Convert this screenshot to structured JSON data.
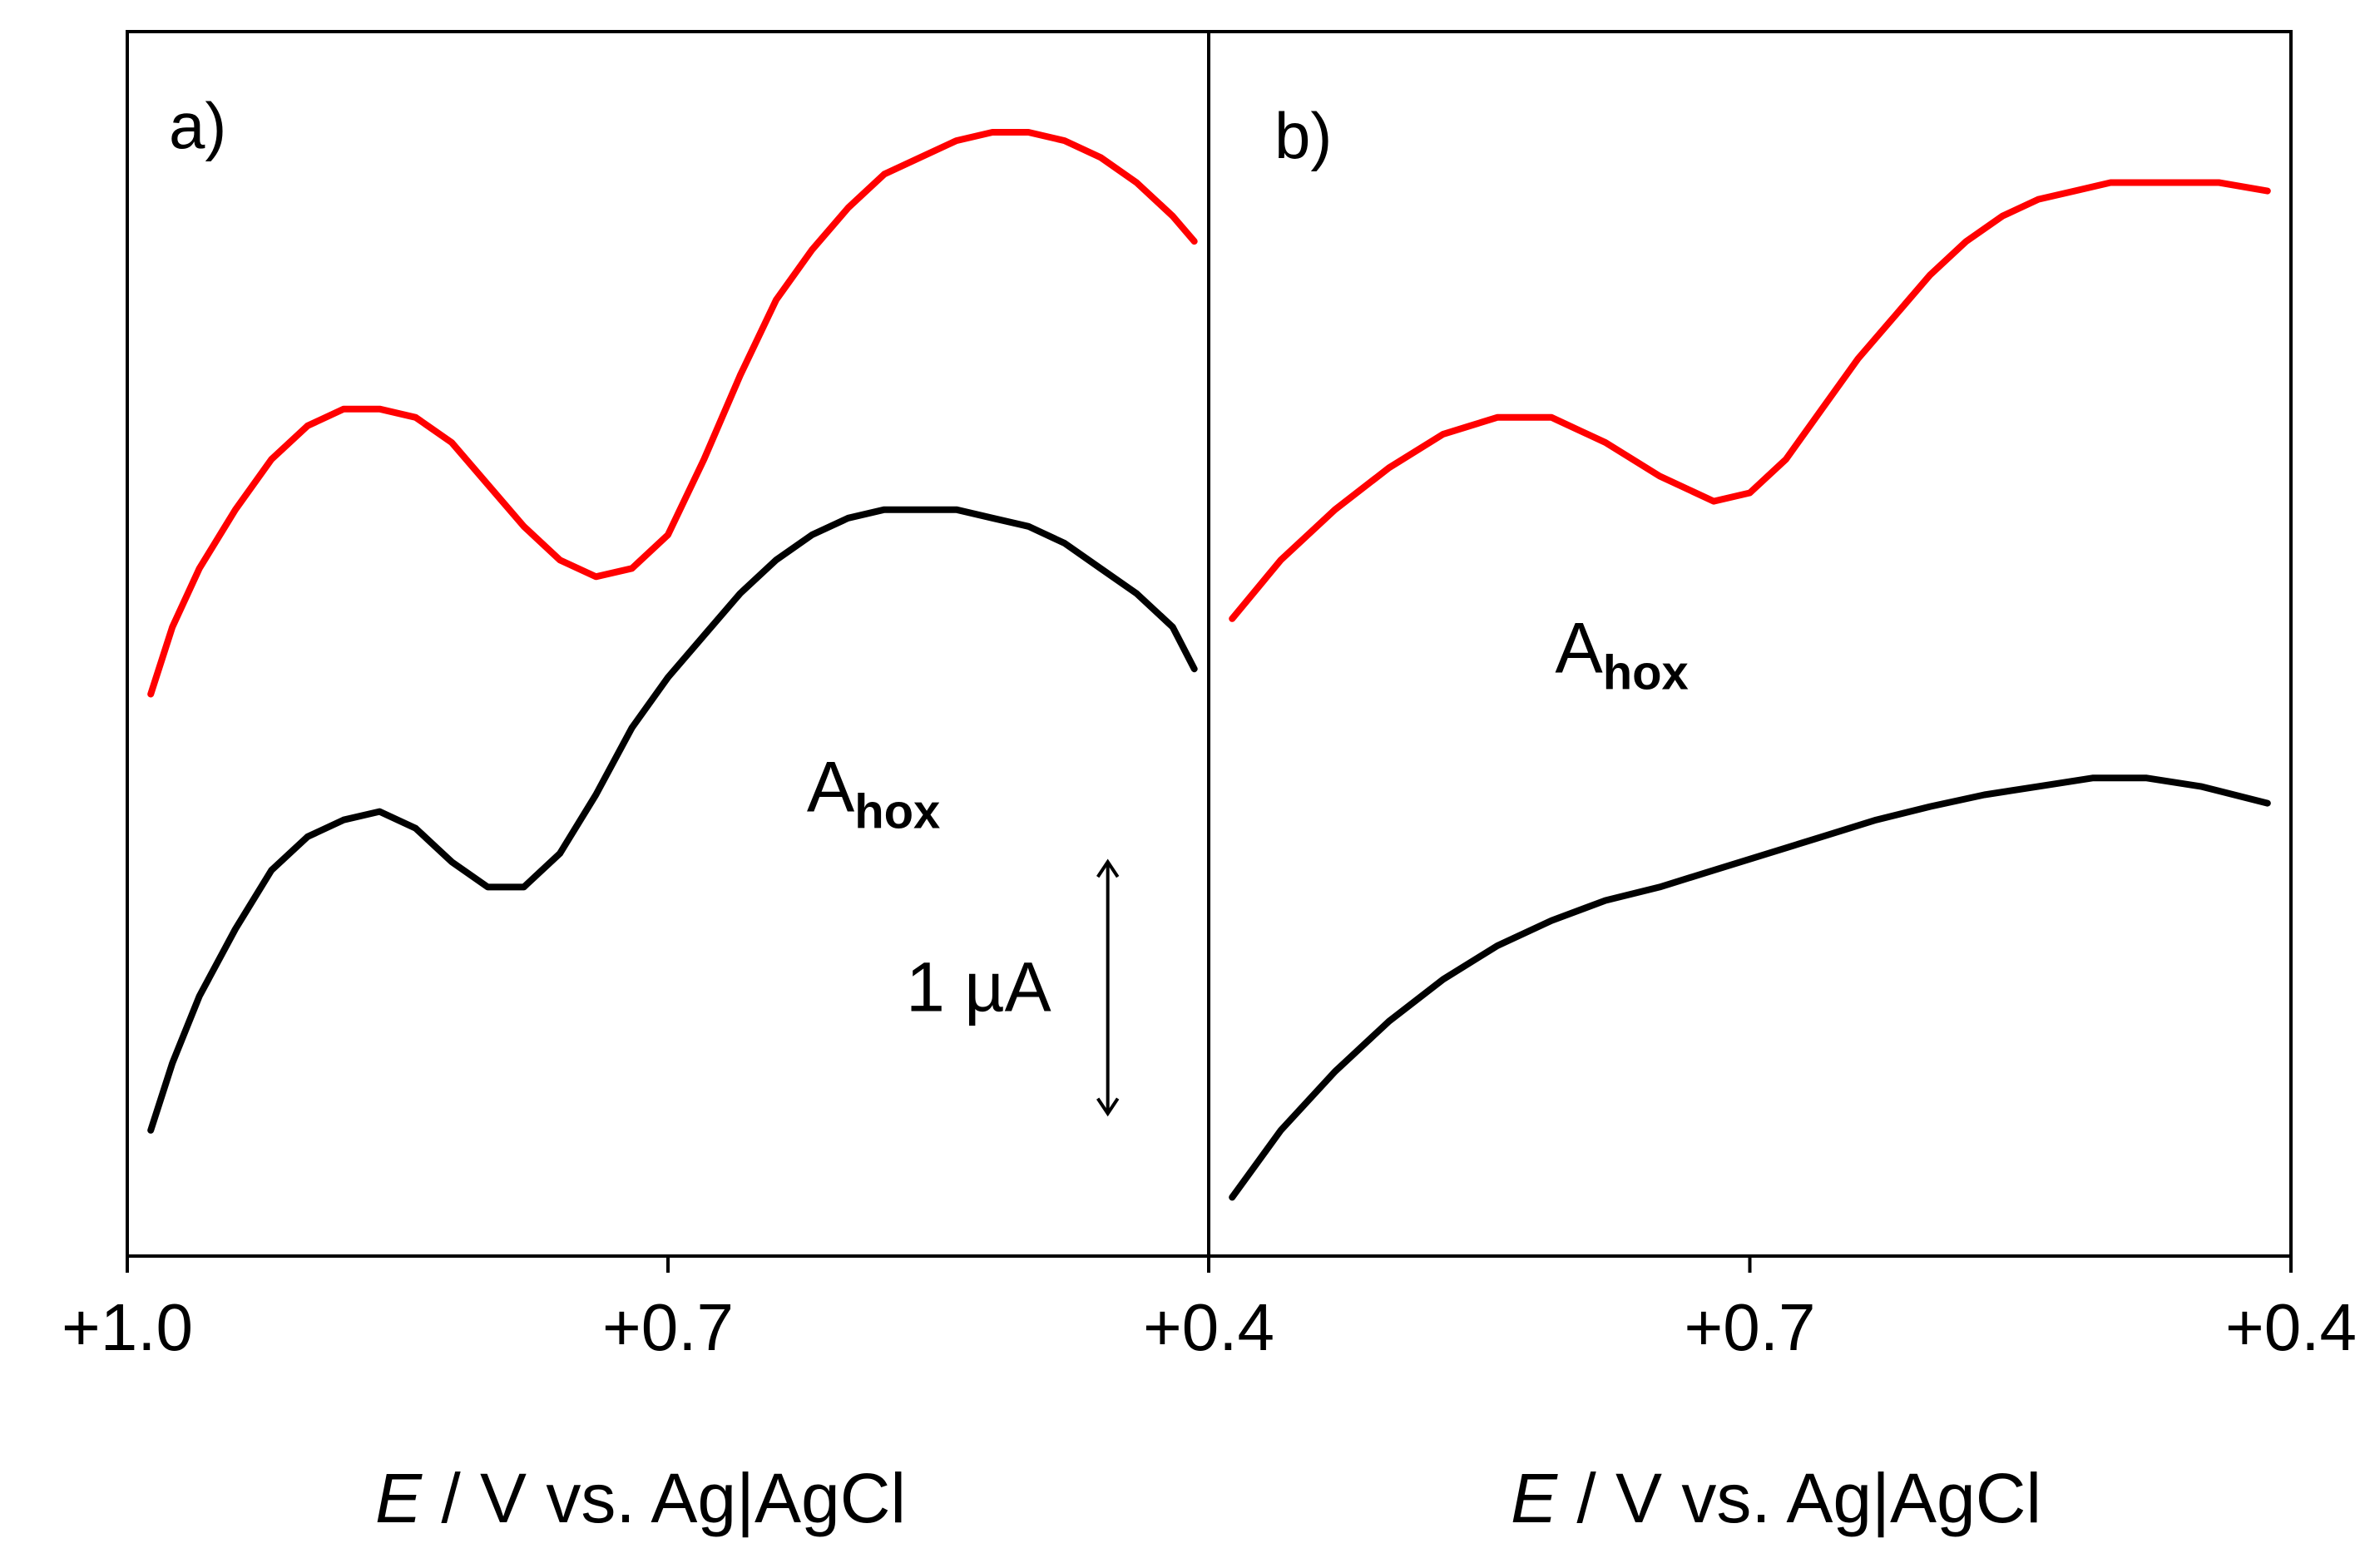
{
  "chart_data": [
    {
      "type": "line",
      "panel_label": "a)",
      "xlabel_italic": "E",
      "xlabel_rest": " / V vs. Ag|AgCl",
      "xlim": [
        1.0,
        0.4
      ],
      "x_tick_values": [
        1.0,
        0.7,
        0.4
      ],
      "x_tick_labels": [
        "+1.0",
        "+0.7",
        "+0.4"
      ],
      "ylim": [
        0,
        7.3
      ],
      "y_unit": "µA (arbitrary offset)",
      "annotation": {
        "main": "A",
        "sub": "hox",
        "x": 0.623,
        "y": 2.65
      },
      "scale_bar": {
        "label": "1 µA",
        "x": 0.456,
        "y_from": 2.35,
        "y_to": 0.85
      },
      "series": [
        {
          "name": "red trace",
          "color": "#ff0000",
          "x": [
            0.987,
            0.975,
            0.96,
            0.94,
            0.92,
            0.9,
            0.88,
            0.86,
            0.84,
            0.82,
            0.8,
            0.78,
            0.76,
            0.74,
            0.72,
            0.7,
            0.68,
            0.66,
            0.64,
            0.62,
            0.6,
            0.58,
            0.56,
            0.54,
            0.52,
            0.5,
            0.48,
            0.46,
            0.44,
            0.42,
            0.408
          ],
          "y": [
            3.35,
            3.75,
            4.1,
            4.45,
            4.75,
            4.95,
            5.05,
            5.05,
            5.0,
            4.85,
            4.6,
            4.35,
            4.15,
            4.05,
            4.1,
            4.3,
            4.75,
            5.25,
            5.7,
            6.0,
            6.25,
            6.45,
            6.55,
            6.65,
            6.7,
            6.7,
            6.65,
            6.55,
            6.4,
            6.2,
            6.05
          ]
        },
        {
          "name": "black trace",
          "color": "#000000",
          "x": [
            0.987,
            0.975,
            0.96,
            0.94,
            0.92,
            0.9,
            0.88,
            0.86,
            0.84,
            0.82,
            0.8,
            0.78,
            0.76,
            0.74,
            0.72,
            0.7,
            0.68,
            0.66,
            0.64,
            0.62,
            0.6,
            0.58,
            0.56,
            0.54,
            0.52,
            0.5,
            0.48,
            0.46,
            0.44,
            0.42,
            0.408
          ],
          "y": [
            0.75,
            1.15,
            1.55,
            1.95,
            2.3,
            2.5,
            2.6,
            2.65,
            2.55,
            2.35,
            2.2,
            2.2,
            2.4,
            2.75,
            3.15,
            3.45,
            3.7,
            3.95,
            4.15,
            4.3,
            4.4,
            4.45,
            4.45,
            4.45,
            4.4,
            4.35,
            4.25,
            4.1,
            3.95,
            3.75,
            3.5
          ]
        }
      ]
    },
    {
      "type": "line",
      "panel_label": "b)",
      "xlabel_italic": "E",
      "xlabel_rest": " / V vs. Ag|AgCl",
      "xlim": [
        1.0,
        0.4
      ],
      "x_tick_values": [
        0.7,
        0.4
      ],
      "x_tick_labels": [
        "+0.7",
        "+0.4"
      ],
      "ylim": [
        0,
        7.3
      ],
      "y_unit": "µA (arbitrary offset)",
      "annotation": {
        "main": "A",
        "sub": "hox",
        "x": 0.808,
        "y": 3.48
      },
      "series": [
        {
          "name": "red trace",
          "color": "#ff0000",
          "x": [
            0.987,
            0.96,
            0.93,
            0.9,
            0.87,
            0.84,
            0.81,
            0.78,
            0.75,
            0.72,
            0.7,
            0.68,
            0.66,
            0.64,
            0.62,
            0.6,
            0.58,
            0.56,
            0.54,
            0.52,
            0.5,
            0.48,
            0.46,
            0.44,
            0.413
          ],
          "y": [
            3.8,
            4.15,
            4.45,
            4.7,
            4.9,
            5.0,
            5.0,
            4.85,
            4.65,
            4.5,
            4.55,
            4.75,
            5.05,
            5.35,
            5.6,
            5.85,
            6.05,
            6.2,
            6.3,
            6.35,
            6.4,
            6.4,
            6.4,
            6.4,
            6.35
          ]
        },
        {
          "name": "black trace",
          "color": "#000000",
          "x": [
            0.987,
            0.96,
            0.93,
            0.9,
            0.87,
            0.84,
            0.81,
            0.78,
            0.75,
            0.72,
            0.69,
            0.66,
            0.63,
            0.6,
            0.57,
            0.54,
            0.51,
            0.48,
            0.45,
            0.413
          ],
          "y": [
            0.35,
            0.75,
            1.1,
            1.4,
            1.65,
            1.85,
            2.0,
            2.12,
            2.2,
            2.3,
            2.4,
            2.5,
            2.6,
            2.68,
            2.75,
            2.8,
            2.85,
            2.85,
            2.8,
            2.7
          ]
        }
      ]
    }
  ]
}
